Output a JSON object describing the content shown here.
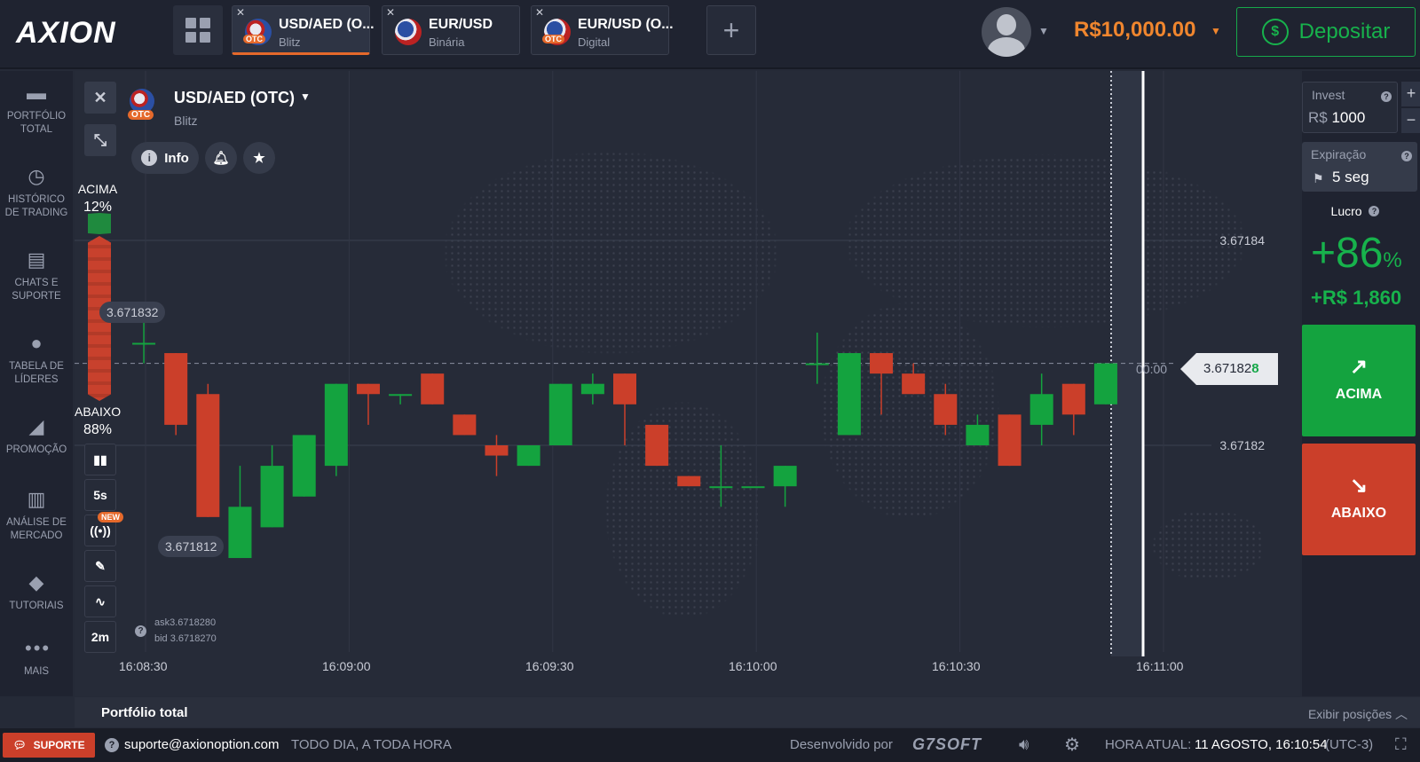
{
  "header": {
    "logo": "AXION",
    "tabs": [
      {
        "title": "USD/AED (O...",
        "otc": "OTC",
        "type": "Blitz",
        "active": true
      },
      {
        "title": "EUR/USD",
        "otc": "",
        "type": "Binária",
        "active": false
      },
      {
        "title": "EUR/USD (O...",
        "otc": "OTC",
        "type": "Digital",
        "active": false
      }
    ],
    "balance": "R$10,000.00",
    "deposit_label": "Depositar"
  },
  "sidebar": {
    "items": [
      {
        "label": "PORTFÓLIO TOTAL",
        "icon": "briefcase-icon"
      },
      {
        "label": "HISTÓRICO DE TRADING",
        "icon": "clock-icon"
      },
      {
        "label": "CHATS E SUPORTE",
        "icon": "chat-icon"
      },
      {
        "label": "TABELA DE LÍDERES",
        "icon": "award-icon"
      },
      {
        "label": "PROMOÇÃO",
        "icon": "megaphone-icon"
      },
      {
        "label": "ANÁLISE DE MERCADO",
        "icon": "bar-chart-icon"
      },
      {
        "label": "TUTORIAIS",
        "icon": "graduation-cap-icon"
      },
      {
        "label": "MAIS",
        "icon": "more-icon"
      }
    ]
  },
  "asset": {
    "name": "USD/AED (OTC)",
    "otc": "OTC",
    "type": "Blitz",
    "info_label": "Info"
  },
  "sentiment": {
    "up_label": "ACIMA",
    "up_pct": "12%",
    "down_label": "ABAIXO",
    "down_pct": "88%"
  },
  "tools": {
    "timeframe": "5s",
    "new_badge": "NEW",
    "period": "2m"
  },
  "price_labels": {
    "high_tag": "3.671832",
    "low_tag": "3.671812",
    "ask": "ask3.6718280",
    "bid": "bid 3.6718270",
    "current_main": "3.67182",
    "current_last": "8",
    "timer": "00:00"
  },
  "chart_data": {
    "type": "candlestick",
    "y_ticks": [
      "3.67184",
      "3.67182"
    ],
    "x_ticks": [
      "16:08:30",
      "16:09:00",
      "16:09:30",
      "16:10:00",
      "16:10:30",
      "16:11:00"
    ],
    "candles": [
      {
        "o": 3.67183,
        "c": 3.67183,
        "h": 3.671833,
        "l": 3.671828
      },
      {
        "o": 3.671829,
        "c": 3.671822,
        "h": 3.671829,
        "l": 3.671821
      },
      {
        "o": 3.671825,
        "c": 3.671813,
        "h": 3.671826,
        "l": 3.671813
      },
      {
        "o": 3.671809,
        "c": 3.671814,
        "h": 3.671818,
        "l": 3.671809
      },
      {
        "o": 3.671812,
        "c": 3.671818,
        "h": 3.67182,
        "l": 3.671812
      },
      {
        "o": 3.671815,
        "c": 3.671821,
        "h": 3.671821,
        "l": 3.671815
      },
      {
        "o": 3.671818,
        "c": 3.671826,
        "h": 3.671826,
        "l": 3.671817
      },
      {
        "o": 3.671826,
        "c": 3.671825,
        "h": 3.671826,
        "l": 3.671822
      },
      {
        "o": 3.671825,
        "c": 3.671825,
        "h": 3.671825,
        "l": 3.671824
      },
      {
        "o": 3.671827,
        "c": 3.671824,
        "h": 3.671827,
        "l": 3.671824
      },
      {
        "o": 3.671823,
        "c": 3.671821,
        "h": 3.671823,
        "l": 3.671821
      },
      {
        "o": 3.67182,
        "c": 3.671819,
        "h": 3.671821,
        "l": 3.671817
      },
      {
        "o": 3.671818,
        "c": 3.67182,
        "h": 3.67182,
        "l": 3.671818
      },
      {
        "o": 3.67182,
        "c": 3.671826,
        "h": 3.671826,
        "l": 3.67182
      },
      {
        "o": 3.671825,
        "c": 3.671826,
        "h": 3.671827,
        "l": 3.671824
      },
      {
        "o": 3.671827,
        "c": 3.671824,
        "h": 3.671827,
        "l": 3.67182
      },
      {
        "o": 3.671822,
        "c": 3.671818,
        "h": 3.671822,
        "l": 3.671818
      },
      {
        "o": 3.671817,
        "c": 3.671816,
        "h": 3.671817,
        "l": 3.671816
      },
      {
        "o": 3.671816,
        "c": 3.671816,
        "h": 3.67182,
        "l": 3.671814
      },
      {
        "o": 3.671816,
        "c": 3.671816,
        "h": 3.671816,
        "l": 3.671816
      },
      {
        "o": 3.671816,
        "c": 3.671818,
        "h": 3.671818,
        "l": 3.671814
      },
      {
        "o": 3.671828,
        "c": 3.671828,
        "h": 3.671831,
        "l": 3.671826
      },
      {
        "o": 3.671821,
        "c": 3.671829,
        "h": 3.671829,
        "l": 3.671821
      },
      {
        "o": 3.671829,
        "c": 3.671827,
        "h": 3.671829,
        "l": 3.671823
      },
      {
        "o": 3.671827,
        "c": 3.671825,
        "h": 3.671828,
        "l": 3.671825
      },
      {
        "o": 3.671825,
        "c": 3.671822,
        "h": 3.671826,
        "l": 3.671821
      },
      {
        "o": 3.67182,
        "c": 3.671822,
        "h": 3.671823,
        "l": 3.67182
      },
      {
        "o": 3.671823,
        "c": 3.671818,
        "h": 3.671823,
        "l": 3.671818
      },
      {
        "o": 3.671822,
        "c": 3.671825,
        "h": 3.671827,
        "l": 3.67182
      },
      {
        "o": 3.671826,
        "c": 3.671823,
        "h": 3.671826,
        "l": 3.671821
      },
      {
        "o": 3.671824,
        "c": 3.671828,
        "h": 3.671828,
        "l": 3.671824
      }
    ],
    "price_tick_values": [
      3.67184,
      3.67182
    ],
    "current_price": 3.671828,
    "colors": {
      "up": "#14a33f",
      "down": "#cb3f2a"
    }
  },
  "trade_panel": {
    "invest_label": "Invest",
    "invest_currency": "R$",
    "invest_value": "1000",
    "expiry_label": "Expiração",
    "expiry_value": "5 seg",
    "profit_label": "Lucro",
    "profit_pct": "+86",
    "profit_pct_sign": "%",
    "profit_amount": "+R$ 1,860",
    "up_button": "ACIMA",
    "down_button": "ABAIXO"
  },
  "portfolio": {
    "title": "Portfólio total",
    "show_positions": "Exibir posições"
  },
  "footer": {
    "support": "SUPORTE",
    "email": "suporte@axionoption.com",
    "hours": "TODO DIA, A TODA HORA",
    "developed_by": "Desenvolvido por",
    "brand": "G7SOFT",
    "time_label": "HORA ATUAL:",
    "time_value": "11 AGOSTO, 16:10:54",
    "timezone": "(UTC-3)"
  }
}
